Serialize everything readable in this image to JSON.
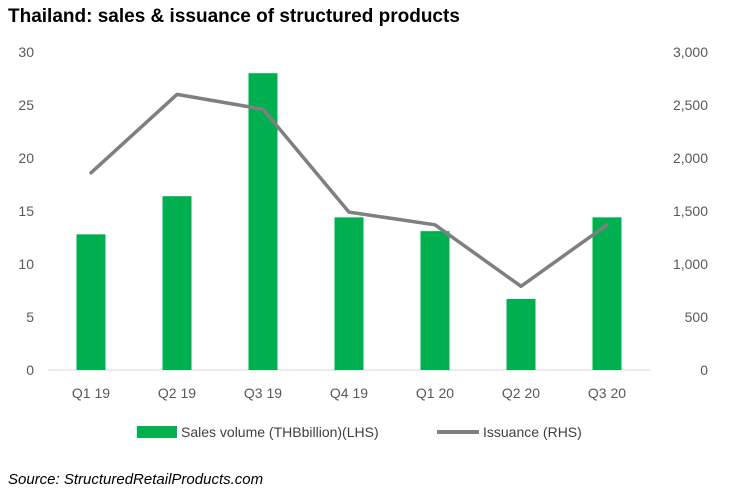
{
  "title": "Thailand: sales & issuance of structured products",
  "source": "Source: StructuredRetailProducts.com",
  "chart_data": {
    "type": "bar",
    "categories": [
      "Q1 19",
      "Q2 19",
      "Q3 19",
      "Q4 19",
      "Q1 20",
      "Q2 20",
      "Q3 20"
    ],
    "series": [
      {
        "name": "Sales volume (THBbillion)(LHS)",
        "type": "bar",
        "axis": "left",
        "color": "#00b050",
        "values": [
          12.8,
          16.4,
          28.0,
          14.4,
          13.1,
          6.7,
          14.4
        ]
      },
      {
        "name": "Issuance (RHS)",
        "type": "line",
        "axis": "right",
        "color": "#7f7f7f",
        "values": [
          1860,
          2600,
          2460,
          1490,
          1370,
          790,
          1370
        ]
      }
    ],
    "y_left": {
      "min": 0,
      "max": 30,
      "ticks": [
        "0",
        "5",
        "10",
        "15",
        "20",
        "25",
        "30"
      ]
    },
    "y_right": {
      "min": 0,
      "max": 3000,
      "ticks": [
        "0",
        "500",
        "1,000",
        "1,500",
        "2,000",
        "2,500",
        "3,000"
      ]
    },
    "grid": false,
    "legend_position": "bottom"
  }
}
